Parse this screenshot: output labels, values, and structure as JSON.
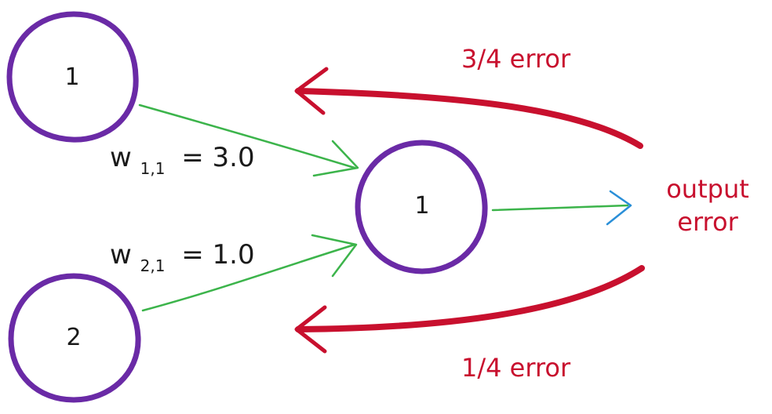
{
  "colors": {
    "node_outline": "#6a2aa6",
    "weight_arrow": "#3cb44b",
    "output_arrow_head": "#2a8fd8",
    "error_arrow": "#c8102e",
    "text": "#1a1a1a",
    "error_text": "#c8102e"
  },
  "nodes": {
    "input_1": {
      "label": "1"
    },
    "input_2": {
      "label": "2"
    },
    "output_1": {
      "label": "1"
    }
  },
  "weights": {
    "w11": {
      "symbol": "w",
      "subscript": "1,1",
      "value": "= 3.0"
    },
    "w21": {
      "symbol": "w",
      "subscript": "2,1",
      "value": "= 1.0"
    }
  },
  "errors": {
    "output_line1": "output",
    "output_line2": "error",
    "top": "3/4 error",
    "bottom": "1/4 error"
  }
}
